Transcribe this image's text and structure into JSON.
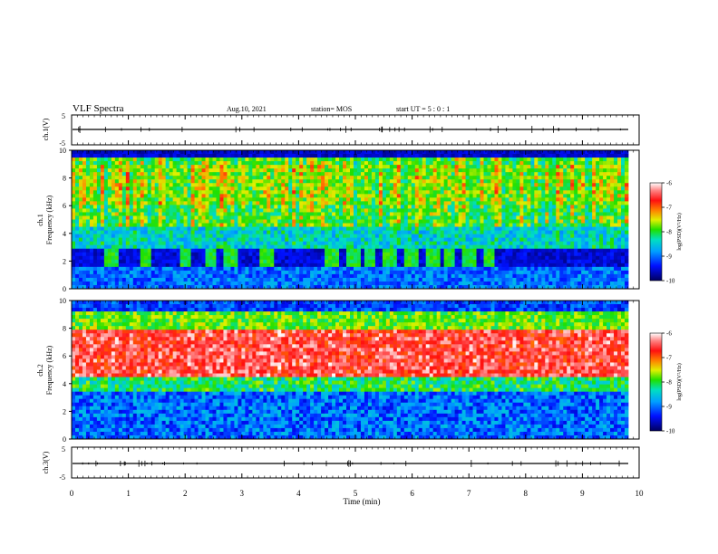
{
  "header": {
    "title": "VLF Spectra",
    "date": "Aug.10, 2021",
    "station": "station= MOS",
    "start": "start UT =  5 : 0 : 1"
  },
  "chart_data": [
    {
      "type": "line",
      "name": "ch1-waveform",
      "ylabel": "ch.1(V)",
      "ylim": [
        -5,
        5
      ],
      "yticks": [
        "5",
        "-5"
      ],
      "xlim": [
        0,
        10
      ]
    },
    {
      "type": "heatmap",
      "name": "ch1-spectrogram",
      "ylabel_top": "ch.1",
      "ylabel": "Frequency (kHz)",
      "ylim": [
        0,
        10
      ],
      "yticks": [
        "0",
        "2",
        "4",
        "6",
        "8",
        "10"
      ],
      "xlim": [
        0,
        10
      ],
      "colorbar": {
        "label": "log(PSD)(V²/Hz)",
        "range": [
          -10,
          -6
        ],
        "ticks": [
          "-6",
          "-7",
          "-8",
          "-9",
          "-10"
        ]
      },
      "dominant_band_khz": [
        4.5,
        9.5
      ],
      "quiet_band_khz": [
        1.6,
        3.0
      ],
      "sferic_bursts_min": [
        0.7,
        1.3,
        2.0,
        2.45,
        2.8,
        3.45,
        4.6,
        4.95,
        5.25,
        5.6,
        6.0,
        6.35,
        6.65,
        7.0,
        7.35
      ]
    },
    {
      "type": "heatmap",
      "name": "ch2-spectrogram",
      "ylabel_top": "ch.2",
      "ylabel": "Frequency (kHz)",
      "ylim": [
        0,
        10
      ],
      "yticks": [
        "0",
        "2",
        "4",
        "6",
        "8",
        "10"
      ],
      "xlim": [
        0,
        10
      ],
      "colorbar": {
        "label": "log(PSD)(V²/Hz)",
        "range": [
          -10,
          -6
        ],
        "ticks": [
          "-6",
          "-7",
          "-8",
          "-9",
          "-10"
        ]
      },
      "dominant_band_khz": [
        4.5,
        8.0
      ]
    },
    {
      "type": "line",
      "name": "ch3-waveform",
      "ylabel": "ch.3(V)",
      "ylim": [
        -5,
        5
      ],
      "yticks": [
        "5",
        "-5"
      ],
      "xlim": [
        0,
        10
      ]
    }
  ],
  "xaxis": {
    "label": "Time (min)",
    "ticks": [
      "0",
      "1",
      "2",
      "3",
      "4",
      "5",
      "6",
      "7",
      "8",
      "9",
      "10"
    ]
  },
  "colors": {
    "low": "#000080",
    "mid_low": "#00a0ff",
    "mid": "#00e090",
    "mid_high": "#f0e000",
    "high": "#ff2020",
    "max": "#ffffff"
  }
}
